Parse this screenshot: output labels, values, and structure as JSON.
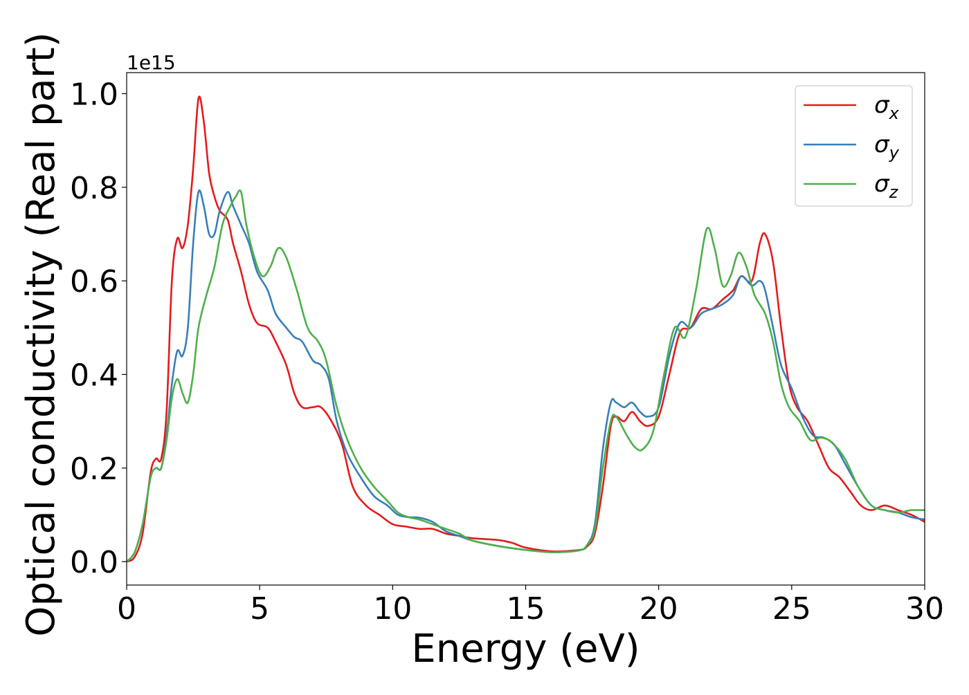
{
  "chart_data": {
    "type": "line",
    "xlabel": "Energy (eV)",
    "ylabel": "Optical conductivity (Real part)",
    "y_offset_text": "1e15",
    "xlim": [
      0,
      30
    ],
    "ylim": [
      -0.05,
      1.045
    ],
    "x_ticks": [
      0,
      5,
      10,
      15,
      20,
      25,
      30
    ],
    "x_tick_labels": [
      "0",
      "5",
      "10",
      "15",
      "20",
      "25",
      "30"
    ],
    "y_ticks": [
      0.0,
      0.2,
      0.4,
      0.6,
      0.8,
      1.0
    ],
    "y_tick_labels": [
      "0.0",
      "0.2",
      "0.4",
      "0.6",
      "0.8",
      "1.0"
    ],
    "grid": false,
    "legend_position": "top-right",
    "series": [
      {
        "name": "σ",
        "subscript": "x",
        "color": "#e41a1c",
        "points": [
          [
            0,
            0
          ],
          [
            0.3,
            0.01
          ],
          [
            0.6,
            0.06
          ],
          [
            0.9,
            0.19
          ],
          [
            1.1,
            0.22
          ],
          [
            1.3,
            0.22
          ],
          [
            1.5,
            0.32
          ],
          [
            1.7,
            0.6
          ],
          [
            1.9,
            0.69
          ],
          [
            2.1,
            0.67
          ],
          [
            2.3,
            0.72
          ],
          [
            2.5,
            0.84
          ],
          [
            2.7,
            0.99
          ],
          [
            2.9,
            0.94
          ],
          [
            3.1,
            0.83
          ],
          [
            3.3,
            0.78
          ],
          [
            3.5,
            0.75
          ],
          [
            3.8,
            0.73
          ],
          [
            4.0,
            0.68
          ],
          [
            4.3,
            0.62
          ],
          [
            4.6,
            0.55
          ],
          [
            4.9,
            0.51
          ],
          [
            5.3,
            0.5
          ],
          [
            5.6,
            0.47
          ],
          [
            6.0,
            0.42
          ],
          [
            6.3,
            0.36
          ],
          [
            6.6,
            0.33
          ],
          [
            7.0,
            0.33
          ],
          [
            7.3,
            0.33
          ],
          [
            7.7,
            0.3
          ],
          [
            8.1,
            0.25
          ],
          [
            8.5,
            0.16
          ],
          [
            9.0,
            0.12
          ],
          [
            9.5,
            0.1
          ],
          [
            10.0,
            0.08
          ],
          [
            10.5,
            0.075
          ],
          [
            11.0,
            0.07
          ],
          [
            11.5,
            0.07
          ],
          [
            12.0,
            0.06
          ],
          [
            12.5,
            0.055
          ],
          [
            13.0,
            0.05
          ],
          [
            14.0,
            0.046
          ],
          [
            14.5,
            0.04
          ],
          [
            15.0,
            0.03
          ],
          [
            16.0,
            0.022
          ],
          [
            17.0,
            0.025
          ],
          [
            17.3,
            0.032
          ],
          [
            17.6,
            0.06
          ],
          [
            17.9,
            0.16
          ],
          [
            18.2,
            0.29
          ],
          [
            18.4,
            0.31
          ],
          [
            18.7,
            0.3
          ],
          [
            19.0,
            0.32
          ],
          [
            19.3,
            0.3
          ],
          [
            19.6,
            0.29
          ],
          [
            20.0,
            0.31
          ],
          [
            20.4,
            0.4
          ],
          [
            20.8,
            0.49
          ],
          [
            21.2,
            0.5
          ],
          [
            21.6,
            0.54
          ],
          [
            22.0,
            0.54
          ],
          [
            22.4,
            0.56
          ],
          [
            22.8,
            0.58
          ],
          [
            23.1,
            0.61
          ],
          [
            23.5,
            0.6
          ],
          [
            23.8,
            0.68
          ],
          [
            24.0,
            0.7
          ],
          [
            24.3,
            0.64
          ],
          [
            24.6,
            0.5
          ],
          [
            24.9,
            0.38
          ],
          [
            25.2,
            0.33
          ],
          [
            25.6,
            0.3
          ],
          [
            26.0,
            0.25
          ],
          [
            26.4,
            0.2
          ],
          [
            26.8,
            0.18
          ],
          [
            27.2,
            0.15
          ],
          [
            27.6,
            0.12
          ],
          [
            28.0,
            0.11
          ],
          [
            28.5,
            0.12
          ],
          [
            29.0,
            0.11
          ],
          [
            29.5,
            0.1
          ],
          [
            30.0,
            0.085
          ]
        ]
      },
      {
        "name": "σ",
        "subscript": "y",
        "color": "#377eb8",
        "points": [
          [
            0,
            0
          ],
          [
            0.3,
            0.02
          ],
          [
            0.6,
            0.08
          ],
          [
            0.9,
            0.18
          ],
          [
            1.1,
            0.2
          ],
          [
            1.3,
            0.2
          ],
          [
            1.5,
            0.27
          ],
          [
            1.7,
            0.38
          ],
          [
            1.9,
            0.45
          ],
          [
            2.1,
            0.44
          ],
          [
            2.3,
            0.5
          ],
          [
            2.5,
            0.68
          ],
          [
            2.7,
            0.79
          ],
          [
            2.9,
            0.76
          ],
          [
            3.1,
            0.7
          ],
          [
            3.3,
            0.7
          ],
          [
            3.5,
            0.75
          ],
          [
            3.8,
            0.79
          ],
          [
            4.0,
            0.76
          ],
          [
            4.3,
            0.72
          ],
          [
            4.6,
            0.68
          ],
          [
            4.9,
            0.62
          ],
          [
            5.3,
            0.58
          ],
          [
            5.6,
            0.53
          ],
          [
            6.0,
            0.5
          ],
          [
            6.3,
            0.48
          ],
          [
            6.6,
            0.47
          ],
          [
            7.0,
            0.43
          ],
          [
            7.3,
            0.42
          ],
          [
            7.6,
            0.39
          ],
          [
            7.9,
            0.3
          ],
          [
            8.3,
            0.23
          ],
          [
            8.8,
            0.18
          ],
          [
            9.3,
            0.14
          ],
          [
            9.8,
            0.12
          ],
          [
            10.2,
            0.1
          ],
          [
            10.6,
            0.095
          ],
          [
            11.0,
            0.094
          ],
          [
            11.5,
            0.085
          ],
          [
            12.0,
            0.065
          ],
          [
            12.5,
            0.055
          ],
          [
            13.0,
            0.045
          ],
          [
            14.0,
            0.033
          ],
          [
            15.0,
            0.025
          ],
          [
            16.0,
            0.02
          ],
          [
            17.0,
            0.024
          ],
          [
            17.3,
            0.035
          ],
          [
            17.6,
            0.08
          ],
          [
            17.9,
            0.24
          ],
          [
            18.2,
            0.34
          ],
          [
            18.4,
            0.34
          ],
          [
            18.7,
            0.33
          ],
          [
            19.0,
            0.34
          ],
          [
            19.3,
            0.32
          ],
          [
            19.6,
            0.31
          ],
          [
            20.0,
            0.33
          ],
          [
            20.4,
            0.44
          ],
          [
            20.8,
            0.51
          ],
          [
            21.2,
            0.5
          ],
          [
            21.6,
            0.53
          ],
          [
            22.0,
            0.54
          ],
          [
            22.4,
            0.55
          ],
          [
            22.8,
            0.57
          ],
          [
            23.1,
            0.61
          ],
          [
            23.5,
            0.59
          ],
          [
            23.8,
            0.6
          ],
          [
            24.0,
            0.58
          ],
          [
            24.3,
            0.5
          ],
          [
            24.6,
            0.42
          ],
          [
            25.0,
            0.37
          ],
          [
            25.4,
            0.31
          ],
          [
            25.8,
            0.27
          ],
          [
            26.2,
            0.265
          ],
          [
            26.6,
            0.25
          ],
          [
            27.0,
            0.21
          ],
          [
            27.5,
            0.16
          ],
          [
            28.0,
            0.12
          ],
          [
            28.5,
            0.11
          ],
          [
            29.0,
            0.105
          ],
          [
            29.5,
            0.095
          ],
          [
            30.0,
            0.09
          ]
        ]
      },
      {
        "name": "σ",
        "subscript": "z",
        "color": "#4daf4a",
        "points": [
          [
            0,
            0
          ],
          [
            0.3,
            0.02
          ],
          [
            0.6,
            0.08
          ],
          [
            0.9,
            0.18
          ],
          [
            1.1,
            0.2
          ],
          [
            1.3,
            0.2
          ],
          [
            1.5,
            0.26
          ],
          [
            1.7,
            0.35
          ],
          [
            1.9,
            0.39
          ],
          [
            2.1,
            0.36
          ],
          [
            2.3,
            0.34
          ],
          [
            2.5,
            0.4
          ],
          [
            2.7,
            0.5
          ],
          [
            3.0,
            0.57
          ],
          [
            3.3,
            0.63
          ],
          [
            3.6,
            0.72
          ],
          [
            3.9,
            0.76
          ],
          [
            4.1,
            0.78
          ],
          [
            4.3,
            0.79
          ],
          [
            4.5,
            0.72
          ],
          [
            4.8,
            0.65
          ],
          [
            5.1,
            0.61
          ],
          [
            5.4,
            0.63
          ],
          [
            5.7,
            0.67
          ],
          [
            6.0,
            0.65
          ],
          [
            6.4,
            0.58
          ],
          [
            6.8,
            0.5
          ],
          [
            7.2,
            0.47
          ],
          [
            7.5,
            0.43
          ],
          [
            7.9,
            0.33
          ],
          [
            8.3,
            0.26
          ],
          [
            8.8,
            0.2
          ],
          [
            9.3,
            0.16
          ],
          [
            9.8,
            0.13
          ],
          [
            10.2,
            0.105
          ],
          [
            10.6,
            0.095
          ],
          [
            11.0,
            0.09
          ],
          [
            11.5,
            0.08
          ],
          [
            12.0,
            0.07
          ],
          [
            12.5,
            0.06
          ],
          [
            13.0,
            0.045
          ],
          [
            14.0,
            0.033
          ],
          [
            15.0,
            0.025
          ],
          [
            16.0,
            0.02
          ],
          [
            17.0,
            0.024
          ],
          [
            17.3,
            0.035
          ],
          [
            17.6,
            0.07
          ],
          [
            17.9,
            0.2
          ],
          [
            18.2,
            0.3
          ],
          [
            18.4,
            0.31
          ],
          [
            18.8,
            0.27
          ],
          [
            19.1,
            0.245
          ],
          [
            19.4,
            0.24
          ],
          [
            19.8,
            0.28
          ],
          [
            20.2,
            0.4
          ],
          [
            20.6,
            0.5
          ],
          [
            21.0,
            0.48
          ],
          [
            21.4,
            0.58
          ],
          [
            21.8,
            0.71
          ],
          [
            22.1,
            0.67
          ],
          [
            22.4,
            0.59
          ],
          [
            22.7,
            0.61
          ],
          [
            23.0,
            0.66
          ],
          [
            23.3,
            0.63
          ],
          [
            23.6,
            0.57
          ],
          [
            24.0,
            0.53
          ],
          [
            24.3,
            0.47
          ],
          [
            24.6,
            0.38
          ],
          [
            24.9,
            0.33
          ],
          [
            25.3,
            0.3
          ],
          [
            25.7,
            0.26
          ],
          [
            26.1,
            0.265
          ],
          [
            26.5,
            0.255
          ],
          [
            27.0,
            0.22
          ],
          [
            27.5,
            0.16
          ],
          [
            28.0,
            0.12
          ],
          [
            28.5,
            0.11
          ],
          [
            29.0,
            0.105
          ],
          [
            29.5,
            0.11
          ],
          [
            30.0,
            0.11
          ]
        ]
      }
    ]
  }
}
